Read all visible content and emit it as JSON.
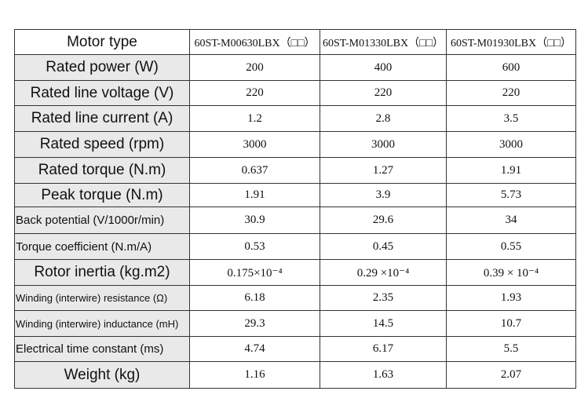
{
  "table": {
    "header": [
      "Motor type",
      "60ST-M00630LBX（□□）",
      "60ST-M01330LBX（□□）",
      "60ST-M01930LBX（□□）"
    ],
    "rows": [
      [
        "Rated power (W)",
        "200",
        "400",
        "600"
      ],
      [
        "Rated line voltage (V)",
        "220",
        "220",
        "220"
      ],
      [
        "Rated line current (A)",
        "1.2",
        "2.8",
        "3.5"
      ],
      [
        "Rated speed (rpm)",
        "3000",
        "3000",
        "3000"
      ],
      [
        "Rated torque (N.m)",
        "0.637",
        "1.27",
        "1.91"
      ],
      [
        "Peak torque (N.m)",
        "1.91",
        "3.9",
        "5.73"
      ],
      [
        "Back potential (V/1000r/min)",
        "30.9",
        "29.6",
        "34"
      ],
      [
        "Torque coefficient (N.m/A)",
        "0.53",
        "0.45",
        "0.55"
      ],
      [
        "Rotor inertia (kg.m2)",
        "0.175×10⁻⁴",
        "0.29 ×10⁻⁴",
        "0.39 × 10⁻⁴"
      ],
      [
        "Winding (interwire) resistance (Ω)",
        "6.18",
        "2.35",
        "1.93"
      ],
      [
        "Winding (interwire) inductance (mH)",
        "29.3",
        "14.5",
        "10.7"
      ],
      [
        "Electrical time constant (ms)",
        "4.74",
        "6.17",
        "5.5"
      ],
      [
        "Weight (kg)",
        "1.16",
        "1.63",
        "2.07"
      ]
    ]
  }
}
